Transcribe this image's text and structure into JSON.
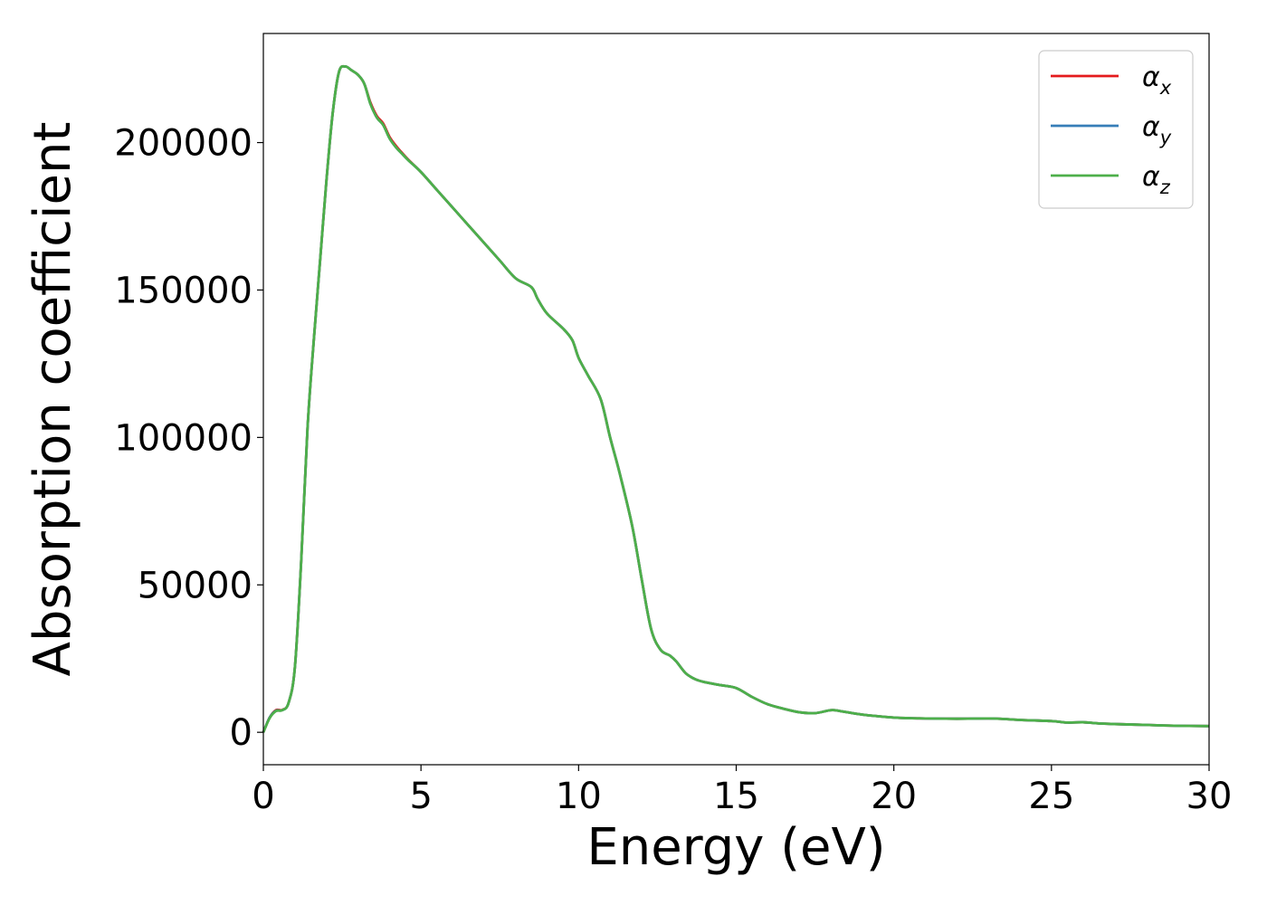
{
  "chart_data": {
    "type": "line",
    "xlabel": "Energy (eV)",
    "ylabel": "Absorption coefficient",
    "xlim": [
      0,
      30
    ],
    "ylim": [
      -11000,
      237000
    ],
    "x_ticks": [
      0,
      5,
      10,
      15,
      20,
      25,
      30
    ],
    "y_ticks": [
      0,
      50000,
      100000,
      150000,
      200000
    ],
    "grid": false,
    "legend_position": "top-right",
    "x": [
      0,
      0.2,
      0.4,
      0.6,
      0.8,
      1.0,
      1.2,
      1.4,
      1.6,
      1.8,
      2.0,
      2.2,
      2.4,
      2.6,
      2.8,
      3.0,
      3.2,
      3.4,
      3.6,
      3.8,
      4.0,
      4.2,
      4.4,
      4.6,
      5.0,
      5.5,
      6.0,
      6.5,
      7.0,
      7.5,
      8.0,
      8.5,
      8.7,
      9.0,
      9.5,
      9.8,
      10.0,
      10.3,
      10.7,
      11.0,
      11.3,
      11.7,
      12.0,
      12.3,
      12.6,
      12.9,
      13.1,
      13.4,
      13.7,
      14.0,
      14.5,
      15.0,
      15.5,
      16.0,
      16.5,
      17.0,
      17.5,
      18.0,
      18.3,
      19.0,
      20.0,
      20.5,
      21.0,
      22.0,
      23.0,
      23.5,
      24.0,
      25.0,
      25.5,
      26.0,
      26.5,
      27.0,
      28.0,
      29.0,
      30.0
    ],
    "series": [
      {
        "name": "α_x",
        "label_main": "α",
        "label_sub": "x",
        "color": "#e41a1c",
        "values": [
          0,
          5000,
          7500,
          7600,
          10000,
          22000,
          58000,
          103000,
          133000,
          160000,
          187000,
          210000,
          224000,
          225800,
          224500,
          223000,
          220000,
          213500,
          209000,
          206500,
          202000,
          199000,
          196500,
          194200,
          190000,
          184000,
          178000,
          172000,
          166000,
          160000,
          154000,
          151000,
          147000,
          142000,
          137000,
          133000,
          127000,
          121000,
          113000,
          100000,
          88000,
          70000,
          52000,
          35000,
          28000,
          26000,
          24000,
          20000,
          18000,
          17000,
          16000,
          15000,
          12000,
          9500,
          8000,
          6800,
          6500,
          7500,
          7200,
          6000,
          5000,
          4800,
          4700,
          4600,
          4700,
          4500,
          4200,
          3800,
          3300,
          3400,
          3000,
          2800,
          2500,
          2200,
          2100
        ]
      },
      {
        "name": "α_y",
        "label_main": "α",
        "label_sub": "y",
        "color": "#377eb8",
        "values": [
          0,
          5000,
          7300,
          7500,
          10000,
          22000,
          58000,
          103000,
          133000,
          160000,
          187000,
          210000,
          224000,
          225800,
          224500,
          223000,
          220000,
          213000,
          208500,
          206000,
          201500,
          198500,
          196200,
          194000,
          190000,
          184000,
          178000,
          172000,
          166000,
          160000,
          154000,
          151000,
          147000,
          142000,
          137000,
          133000,
          127000,
          121000,
          113000,
          100000,
          88000,
          70000,
          52000,
          35000,
          28000,
          26000,
          24000,
          20000,
          18000,
          17000,
          16000,
          15000,
          12000,
          9500,
          8000,
          6800,
          6500,
          7500,
          7200,
          6000,
          5000,
          4800,
          4700,
          4600,
          4700,
          4500,
          4200,
          3800,
          3300,
          3400,
          3000,
          2800,
          2500,
          2200,
          2100
        ]
      },
      {
        "name": "α_z",
        "label_main": "α",
        "label_sub": "z",
        "color": "#4daf4a",
        "values": [
          0,
          4800,
          7200,
          7500,
          10000,
          22000,
          58000,
          103000,
          133000,
          160000,
          187000,
          210000,
          224000,
          225800,
          224500,
          223000,
          220000,
          213000,
          208500,
          206000,
          201500,
          198500,
          196200,
          194000,
          190000,
          184000,
          178000,
          172000,
          166000,
          160000,
          154000,
          151000,
          147000,
          142000,
          137000,
          133000,
          127000,
          121000,
          113000,
          100000,
          88000,
          70000,
          52000,
          35000,
          28000,
          26000,
          24000,
          20000,
          18000,
          17000,
          16000,
          15000,
          12000,
          9500,
          8000,
          6800,
          6500,
          7500,
          7200,
          6000,
          5000,
          4800,
          4700,
          4600,
          4700,
          4500,
          4200,
          3800,
          3300,
          3400,
          3000,
          2800,
          2500,
          2200,
          2100
        ]
      }
    ]
  }
}
